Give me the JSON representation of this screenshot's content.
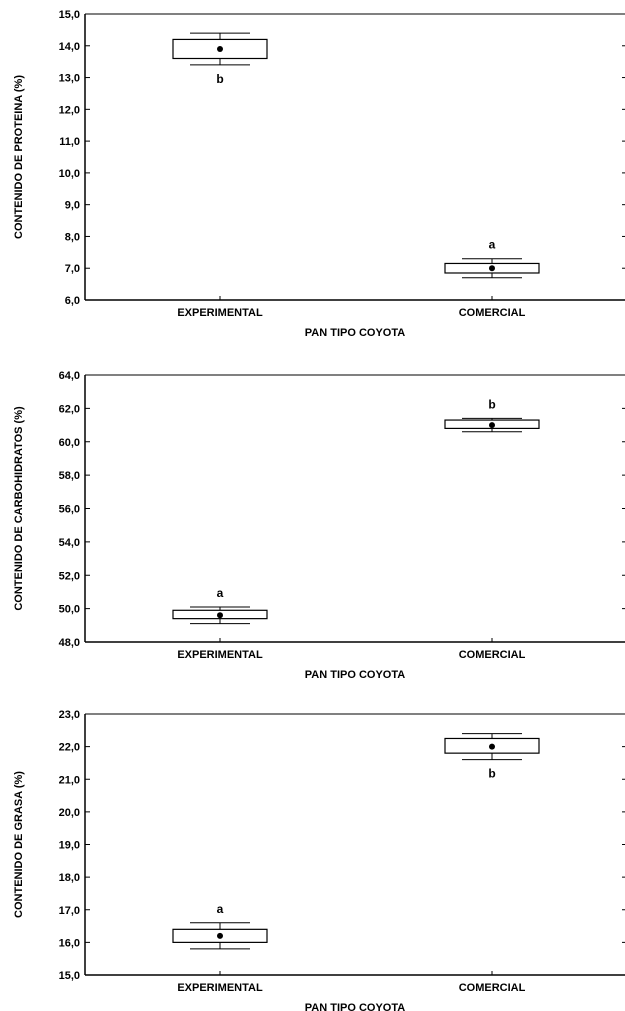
{
  "chart_data": [
    {
      "type": "box",
      "ylabel": "CONTENIDO DE PROTEINA (%)",
      "xlabel": "PAN TIPO COYOTA",
      "ylim": [
        6.0,
        15.0
      ],
      "yticks": [
        "6,0",
        "7,0",
        "8,0",
        "9,0",
        "10,0",
        "11,0",
        "12,0",
        "13,0",
        "14,0",
        "15,0"
      ],
      "ytick_values": [
        6,
        7,
        8,
        9,
        10,
        11,
        12,
        13,
        14,
        15
      ],
      "categories": [
        "EXPERIMENTAL",
        "COMERCIAL"
      ],
      "boxes": [
        {
          "mean": 13.9,
          "box_low": 13.6,
          "box_high": 14.2,
          "whisker_low": 13.4,
          "whisker_high": 14.4,
          "letter": "b",
          "letter_pos": "below"
        },
        {
          "mean": 7.0,
          "box_low": 6.85,
          "box_high": 7.15,
          "whisker_low": 6.7,
          "whisker_high": 7.3,
          "letter": "a",
          "letter_pos": "above"
        }
      ]
    },
    {
      "type": "box",
      "ylabel": "CONTENIDO DE CARBOHIDRATOS (%)",
      "xlabel": "PAN TIPO COYOTA",
      "ylim": [
        48.0,
        64.0
      ],
      "yticks": [
        "48,0",
        "50,0",
        "52,0",
        "54,0",
        "56,0",
        "58,0",
        "60,0",
        "62,0",
        "64,0"
      ],
      "ytick_values": [
        48,
        50,
        52,
        54,
        56,
        58,
        60,
        62,
        64
      ],
      "categories": [
        "EXPERIMENTAL",
        "COMERCIAL"
      ],
      "boxes": [
        {
          "mean": 49.6,
          "box_low": 49.4,
          "box_high": 49.9,
          "whisker_low": 49.1,
          "whisker_high": 50.1,
          "letter": "a",
          "letter_pos": "above"
        },
        {
          "mean": 61.0,
          "box_low": 60.8,
          "box_high": 61.3,
          "whisker_low": 60.6,
          "whisker_high": 61.4,
          "letter": "b",
          "letter_pos": "above"
        }
      ]
    },
    {
      "type": "box",
      "ylabel": "CONTENIDO DE GRASA (%)",
      "xlabel": "PAN TIPO COYOTA",
      "ylim": [
        15.0,
        23.0
      ],
      "yticks": [
        "15,0",
        "16,0",
        "17,0",
        "18,0",
        "19,0",
        "20,0",
        "21,0",
        "22,0",
        "23,0"
      ],
      "ytick_values": [
        15,
        16,
        17,
        18,
        19,
        20,
        21,
        22,
        23
      ],
      "categories": [
        "EXPERIMENTAL",
        "COMERCIAL"
      ],
      "boxes": [
        {
          "mean": 16.2,
          "box_low": 16.0,
          "box_high": 16.4,
          "whisker_low": 15.8,
          "whisker_high": 16.6,
          "letter": "a",
          "letter_pos": "above"
        },
        {
          "mean": 22.0,
          "box_low": 21.8,
          "box_high": 22.25,
          "whisker_low": 21.6,
          "whisker_high": 22.4,
          "letter": "b",
          "letter_pos": "below"
        }
      ]
    }
  ]
}
